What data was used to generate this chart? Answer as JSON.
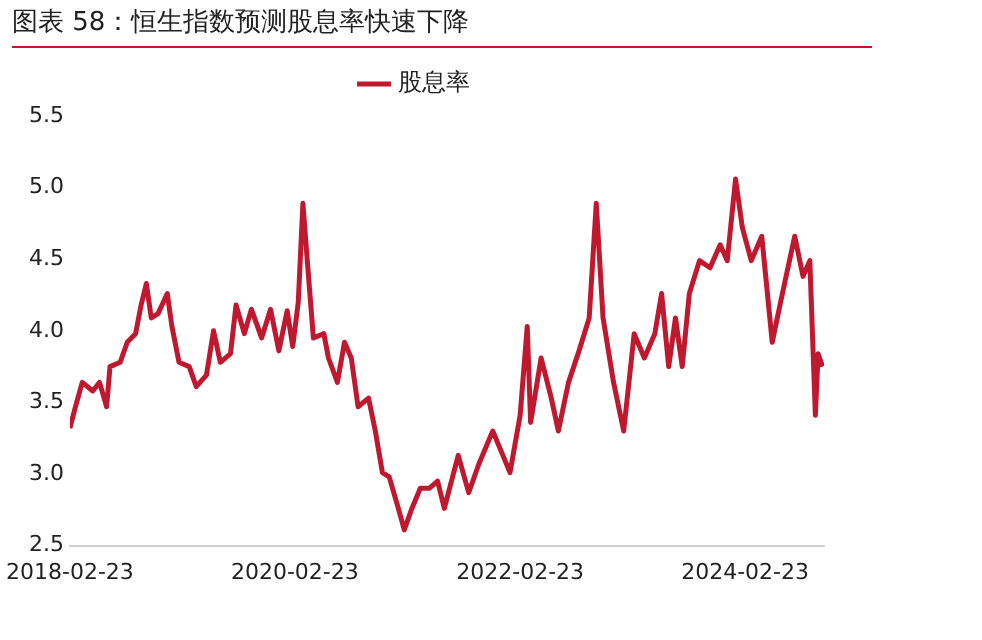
{
  "chart_data": {
    "type": "line",
    "title": "图表 58：恒生指数预测股息率快速下降",
    "x": [
      "2018-02-23",
      "2018-03-13",
      "2018-04-04",
      "2018-05-08",
      "2018-05-30",
      "2018-06-22",
      "2018-07-03",
      "2018-08-05",
      "2018-08-28",
      "2018-09-24",
      "2018-10-12",
      "2018-10-29",
      "2018-11-14",
      "2018-12-06",
      "2019-01-05",
      "2019-01-20",
      "2019-02-12",
      "2019-03-17",
      "2019-04-09",
      "2019-05-12",
      "2019-06-04",
      "2019-06-26",
      "2019-07-29",
      "2019-08-16",
      "2019-09-12",
      "2019-10-05",
      "2019-11-07",
      "2019-12-06",
      "2020-01-02",
      "2020-01-29",
      "2020-02-16",
      "2020-03-05",
      "2020-03-20",
      "2020-04-05",
      "2020-04-23",
      "2020-05-27",
      "2020-06-11",
      "2020-07-10",
      "2020-08-02",
      "2020-08-24",
      "2020-09-15",
      "2020-10-19",
      "2020-11-10",
      "2020-12-03",
      "2020-12-25",
      "2021-01-21",
      "2021-02-12",
      "2021-03-07",
      "2021-04-05",
      "2021-05-04",
      "2021-05-31",
      "2021-06-22",
      "2021-08-06",
      "2021-09-09",
      "2021-10-12",
      "2021-11-26",
      "2021-12-29",
      "2022-01-21",
      "2022-02-23",
      "2022-03-18",
      "2022-03-29",
      "2022-05-02",
      "2022-06-04",
      "2022-06-27",
      "2022-07-30",
      "2022-09-02",
      "2022-10-05",
      "2022-10-28",
      "2022-11-19",
      "2022-12-23",
      "2023-01-25",
      "2023-02-28",
      "2023-04-02",
      "2023-05-06",
      "2023-05-28",
      "2023-06-20",
      "2023-07-12",
      "2023-08-03",
      "2023-08-26",
      "2023-09-28",
      "2023-11-01",
      "2023-12-04",
      "2023-12-27",
      "2024-01-23",
      "2024-02-14",
      "2024-03-14",
      "2024-04-17",
      "2024-05-21",
      "2024-06-23",
      "2024-08-02",
      "2024-08-29",
      "2024-09-20",
      "2024-10-08",
      "2024-10-17",
      "2024-10-31"
    ],
    "series": [
      {
        "name": "股息率",
        "color": "#c0182f",
        "values": [
          3.32,
          3.47,
          3.64,
          3.58,
          3.64,
          3.47,
          3.75,
          3.78,
          3.92,
          3.98,
          4.18,
          4.33,
          4.09,
          4.12,
          4.26,
          4.03,
          3.78,
          3.75,
          3.61,
          3.69,
          4.0,
          3.78,
          3.84,
          4.18,
          3.98,
          4.15,
          3.95,
          4.15,
          3.86,
          4.14,
          3.89,
          4.2,
          4.89,
          4.44,
          3.95,
          3.98,
          3.81,
          3.64,
          3.92,
          3.81,
          3.47,
          3.53,
          3.3,
          3.01,
          2.98,
          2.78,
          2.61,
          2.75,
          2.9,
          2.9,
          2.95,
          2.76,
          3.13,
          2.87,
          3.07,
          3.3,
          3.13,
          3.01,
          3.41,
          4.03,
          3.36,
          3.81,
          3.53,
          3.3,
          3.64,
          3.86,
          4.09,
          4.89,
          4.09,
          3.64,
          3.3,
          3.98,
          3.81,
          3.98,
          4.26,
          3.75,
          4.09,
          3.75,
          4.26,
          4.49,
          4.44,
          4.6,
          4.49,
          5.06,
          4.72,
          4.49,
          4.66,
          3.92,
          4.26,
          4.66,
          4.38,
          4.49,
          3.41,
          3.84,
          3.75
        ]
      }
    ],
    "xlim": [
      "2018-02-23",
      "2024-11-05"
    ],
    "xticks": [
      "2018-02-23",
      "2020-02-23",
      "2022-02-23",
      "2024-02-23"
    ],
    "ylim": [
      2.5,
      5.5
    ],
    "yticks": [
      2.5,
      {
        "value": 3,
        "label": "3.0"
      },
      3.5,
      {
        "value": 4,
        "label": "4.0"
      },
      4.5,
      {
        "value": 5,
        "label": "5.0"
      },
      5.5
    ],
    "grid": false,
    "legend": "top",
    "marker": "none",
    "line_style": "solid"
  }
}
